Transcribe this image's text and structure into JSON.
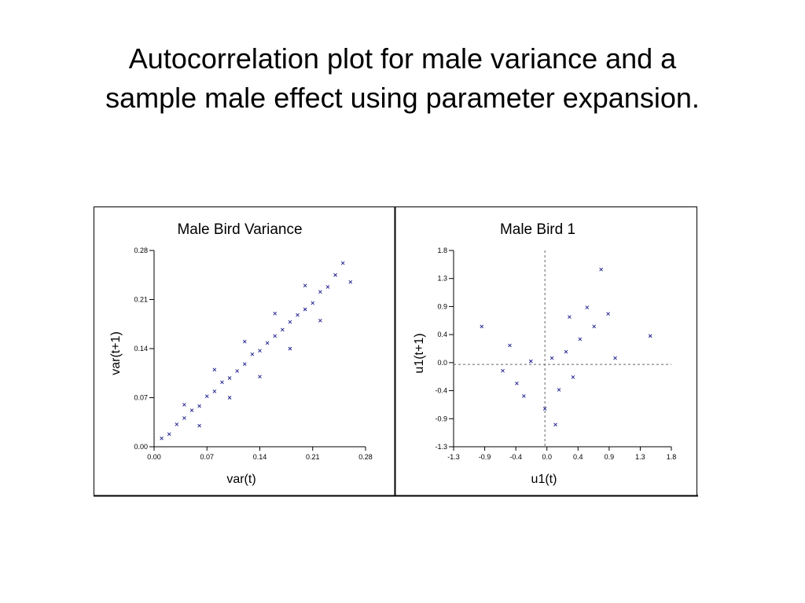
{
  "slide": {
    "title_line1": "Autocorrelation plot for male variance and a",
    "title_line2": "sample male effect using parameter expansion."
  },
  "chart_data": [
    {
      "type": "scatter",
      "title": "Male Bird Variance",
      "xlabel": "var(t)",
      "ylabel": "var(t+1)",
      "xlim": [
        0,
        0.28
      ],
      "ylim": [
        0,
        0.28
      ],
      "xticks": [
        "0.00",
        "0.07",
        "0.14",
        "0.21",
        "0.28"
      ],
      "yticks": [
        "0.00",
        "0.07",
        "0.14",
        "0.21",
        "0.28"
      ],
      "marker": "x",
      "color": "#1a1a8c",
      "grid": false,
      "legend": "none",
      "points": [
        [
          0.01,
          0.012
        ],
        [
          0.02,
          0.018
        ],
        [
          0.03,
          0.032
        ],
        [
          0.04,
          0.041
        ],
        [
          0.05,
          0.052
        ],
        [
          0.06,
          0.058
        ],
        [
          0.07,
          0.072
        ],
        [
          0.08,
          0.079
        ],
        [
          0.09,
          0.092
        ],
        [
          0.1,
          0.098
        ],
        [
          0.11,
          0.108
        ],
        [
          0.12,
          0.118
        ],
        [
          0.13,
          0.132
        ],
        [
          0.14,
          0.137
        ],
        [
          0.15,
          0.148
        ],
        [
          0.16,
          0.158
        ],
        [
          0.17,
          0.167
        ],
        [
          0.18,
          0.178
        ],
        [
          0.19,
          0.188
        ],
        [
          0.2,
          0.196
        ],
        [
          0.21,
          0.205
        ],
        [
          0.22,
          0.221
        ],
        [
          0.23,
          0.228
        ],
        [
          0.24,
          0.245
        ],
        [
          0.25,
          0.262
        ],
        [
          0.26,
          0.235
        ],
        [
          0.04,
          0.06
        ],
        [
          0.06,
          0.03
        ],
        [
          0.08,
          0.11
        ],
        [
          0.1,
          0.07
        ],
        [
          0.12,
          0.15
        ],
        [
          0.14,
          0.1
        ],
        [
          0.16,
          0.19
        ],
        [
          0.18,
          0.14
        ],
        [
          0.2,
          0.23
        ],
        [
          0.22,
          0.18
        ]
      ]
    },
    {
      "type": "scatter",
      "title": "Male Bird 1",
      "xlabel": "u1(t)",
      "ylabel": "u1(t+1)",
      "xlim": [
        -1.3,
        1.8
      ],
      "ylim": [
        -1.3,
        1.8
      ],
      "xticks": [
        "-1.3",
        "-0.9",
        "-0.4",
        "0.0",
        "0.4",
        "0.9",
        "1.3",
        "1.8"
      ],
      "yticks": [
        "-1.3",
        "-0.9",
        "-0.4",
        "0.0",
        "0.4",
        "0.9",
        "1.3",
        "1.8"
      ],
      "marker": "x",
      "color": "#1a1a8c",
      "reference_lines": [
        0.0,
        0.0
      ],
      "grid": false,
      "legend": "none",
      "points": [
        [
          0.1,
          0.1
        ],
        [
          0.3,
          0.2
        ],
        [
          -0.2,
          0.05
        ],
        [
          0.5,
          0.4
        ],
        [
          -0.4,
          -0.3
        ],
        [
          0.7,
          0.6
        ],
        [
          0.2,
          -0.4
        ],
        [
          -0.5,
          0.3
        ],
        [
          0.9,
          0.8
        ],
        [
          1.0,
          0.1
        ],
        [
          -0.6,
          -0.1
        ],
        [
          0.4,
          -0.2
        ],
        [
          0.6,
          0.9
        ],
        [
          0.8,
          1.5
        ],
        [
          -0.9,
          0.6
        ],
        [
          0.0,
          -0.7
        ],
        [
          0.15,
          -0.95
        ],
        [
          1.5,
          0.45
        ],
        [
          -0.3,
          -0.5
        ],
        [
          0.35,
          0.75
        ]
      ]
    }
  ]
}
